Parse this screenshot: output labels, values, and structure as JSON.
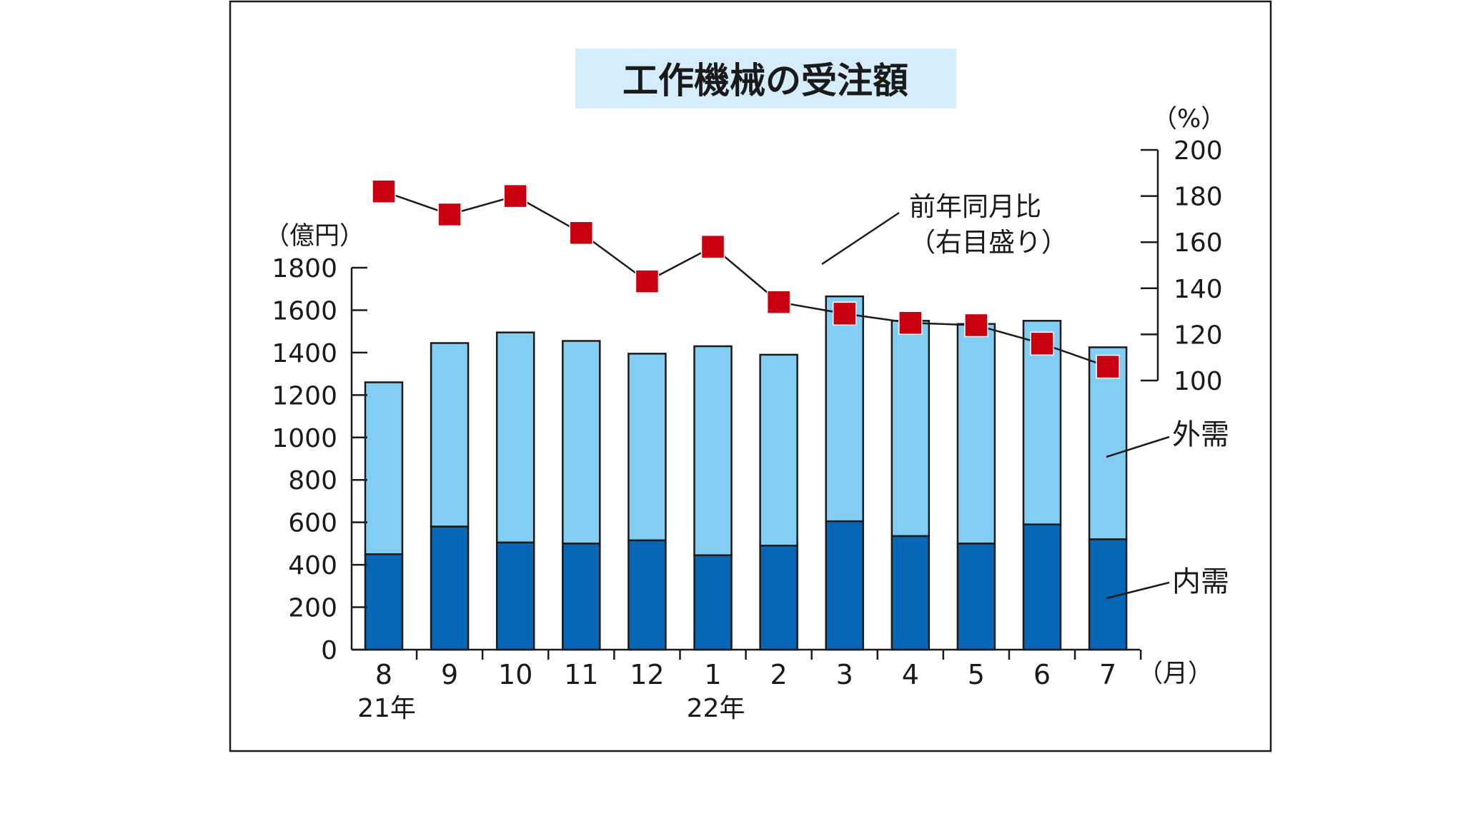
{
  "chart_data": {
    "type": "bar",
    "stacked": true,
    "title": "工作機械の受注額",
    "title_bg": "#d5ecfa",
    "categories": [
      "8",
      "9",
      "10",
      "11",
      "12",
      "1",
      "2",
      "3",
      "4",
      "5",
      "6",
      "7"
    ],
    "year_labels": [
      {
        "category_index": 0,
        "text": "21年"
      },
      {
        "category_index": 5,
        "text": "22年"
      }
    ],
    "x_unit": "（月）",
    "left_axis": {
      "unit": "（億円）",
      "ylim": [
        0,
        1800
      ],
      "ticks": [
        "0",
        "200",
        "400",
        "600",
        "800",
        "1000",
        "1200",
        "1400",
        "1600",
        "1800"
      ]
    },
    "right_axis": {
      "unit": "（%）",
      "ylim": [
        100,
        200
      ],
      "ticks": [
        "100",
        "120",
        "140",
        "160",
        "180",
        "200"
      ]
    },
    "series": [
      {
        "name": "内需",
        "kind": "bar",
        "color": "#0567b5",
        "values": [
          450,
          580,
          505,
          500,
          515,
          445,
          490,
          605,
          535,
          500,
          590,
          520
        ]
      },
      {
        "name": "外需",
        "kind": "bar",
        "color": "#82cdf3",
        "values": [
          810,
          865,
          990,
          955,
          880,
          985,
          900,
          1060,
          1015,
          1035,
          960,
          905
        ]
      },
      {
        "name_line1": "前年同月比",
        "name_line2": "（右目盛り）",
        "kind": "line",
        "axis": "right",
        "marker_color": "#c8000f",
        "line_color": "#1a1a1a",
        "values": [
          182,
          172,
          180,
          164,
          143,
          158,
          134,
          129,
          125,
          124,
          116,
          106
        ]
      }
    ]
  }
}
